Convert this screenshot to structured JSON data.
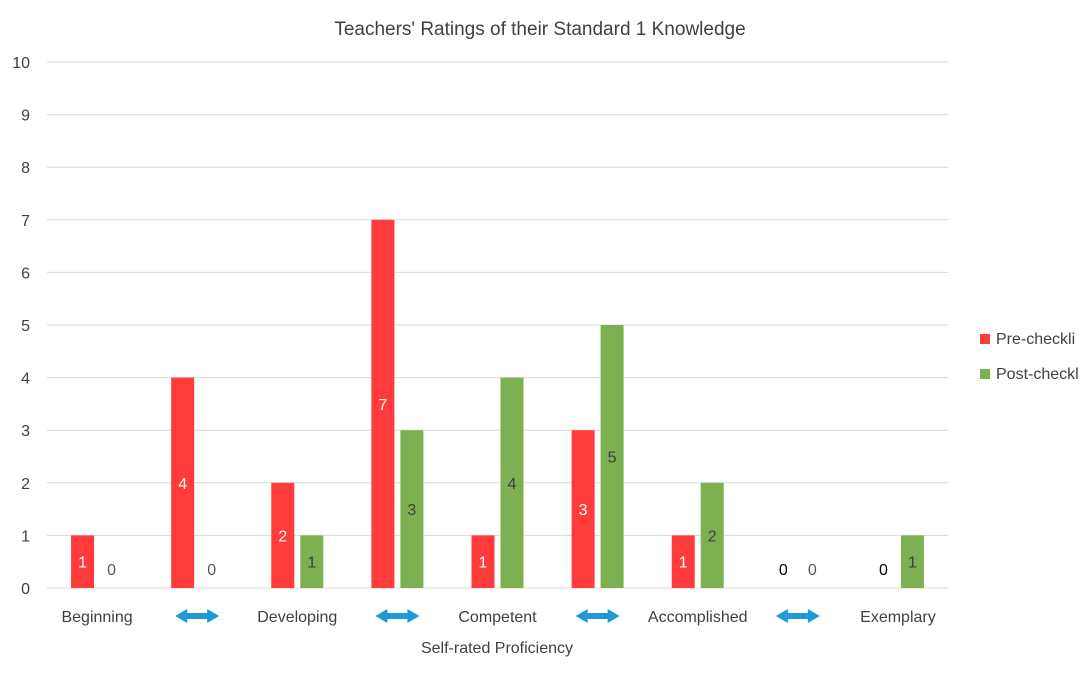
{
  "chart_data": {
    "type": "bar",
    "title": "Teachers' Ratings of their Standard 1 Knowledge",
    "xlabel": "Self-rated Proficiency",
    "ylabel": "",
    "ylim": [
      0,
      10
    ],
    "yticks": [
      "0",
      "1",
      "2",
      "3",
      "4",
      "5",
      "6",
      "7",
      "8",
      "9",
      "10"
    ],
    "grid": true,
    "legend_position": "right",
    "categories": [
      "Beginning",
      "↔",
      "Developing",
      "↔",
      "Competent",
      "↔",
      "Accomplished",
      "↔",
      "Exemplary"
    ],
    "arrow_color": "#1E9BD7",
    "series": [
      {
        "name": "Pre-checkli",
        "color": "#FF3B3B",
        "values": [
          1,
          4,
          2,
          7,
          1,
          3,
          1,
          0,
          0
        ],
        "labels": [
          "1",
          "4",
          "2",
          "7",
          "1",
          "3",
          "1",
          "0",
          "0"
        ]
      },
      {
        "name": "Post-checkl",
        "color": "#7CB050",
        "values": [
          0,
          0,
          1,
          3,
          4,
          5,
          2,
          0,
          1
        ],
        "labels": [
          "0",
          "0",
          "1",
          "3",
          "4",
          "5",
          "2",
          "0",
          "1"
        ]
      }
    ]
  }
}
